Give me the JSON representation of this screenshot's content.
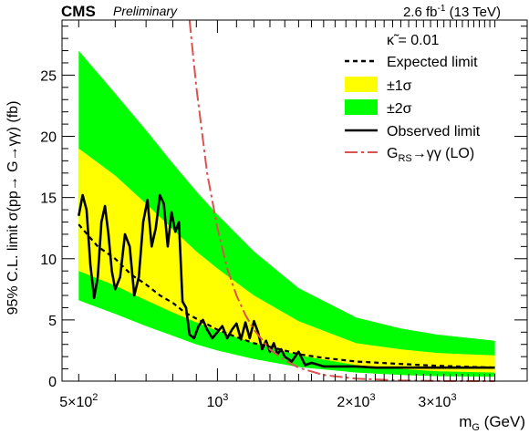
{
  "header": {
    "experiment": "CMS",
    "status": "Preliminary",
    "lumi": "2.6 fb",
    "lumi_exp": "-1",
    "energy": " (13 TeV)"
  },
  "axes": {
    "ylabel": "95% C.L. limit σ(pp→ G→γγ) (fb)",
    "xlabel_main": "m",
    "xlabel_sub": "G",
    "xlabel_unit": " (GeV)"
  },
  "legend": {
    "header_symbol": "κ̃",
    "header_value": " = 0.01",
    "expected": "Expected limit",
    "one_sigma": "±1σ",
    "two_sigma": "±2σ",
    "observed": "Observed limit",
    "theory_prefix": "G",
    "theory_sub": "RS",
    "theory_suffix": "→γγ (LO)"
  },
  "chart_data": {
    "type": "line",
    "title": "",
    "xlabel": "mG (GeV)",
    "ylabel": "95% C.L. limit σ(pp→ G→γγ) (fb)",
    "xscale": "log",
    "xlim": [
      460,
      4700
    ],
    "ylim": [
      0,
      29.5
    ],
    "x_tick_labels": [
      {
        "value": 500,
        "mantissa": "5×10",
        "exp": "2"
      },
      {
        "value": 1000,
        "mantissa": "10",
        "exp": "3"
      },
      {
        "value": 2000,
        "mantissa": "2×10",
        "exp": "3"
      },
      {
        "value": 3000,
        "mantissa": "3×10",
        "exp": "3"
      }
    ],
    "y_ticks": [
      0,
      5,
      10,
      15,
      20,
      25
    ],
    "legend_position": "top-right",
    "colors": {
      "two_sigma": "#00ff00",
      "one_sigma": "#ffff00",
      "expected": "#000000",
      "observed": "#000000",
      "theory": "#d9534f"
    },
    "series": [
      {
        "name": "±2σ",
        "x": [
          500,
          600,
          700,
          800,
          900,
          1000,
          1200,
          1500,
          2000,
          2500,
          3000,
          4000
        ],
        "upper": [
          27.0,
          23.5,
          20.5,
          17.8,
          15.5,
          13.6,
          10.6,
          7.6,
          5.2,
          4.3,
          3.8,
          3.3
        ],
        "lower": [
          6.6,
          5.5,
          4.5,
          3.7,
          3.0,
          2.5,
          1.8,
          1.15,
          0.7,
          0.5,
          0.4,
          0.35
        ]
      },
      {
        "name": "±1σ",
        "x": [
          500,
          600,
          700,
          800,
          900,
          1000,
          1200,
          1500,
          2000,
          2500,
          3000,
          4000
        ],
        "upper": [
          19.0,
          16.8,
          14.5,
          12.4,
          10.6,
          9.2,
          7.0,
          4.9,
          3.1,
          2.6,
          2.3,
          2.1
        ],
        "lower": [
          9.0,
          7.8,
          6.6,
          5.6,
          4.8,
          4.1,
          3.1,
          2.1,
          1.3,
          1.0,
          0.8,
          0.7
        ]
      },
      {
        "name": "Expected limit",
        "x": [
          500,
          550,
          600,
          650,
          700,
          750,
          800,
          850,
          900,
          1000,
          1100,
          1200,
          1300,
          1400,
          1500,
          1700,
          2000,
          2500,
          3000,
          4000
        ],
        "y": [
          12.8,
          11.0,
          10.0,
          8.7,
          7.9,
          7.0,
          6.4,
          5.6,
          5.1,
          4.2,
          3.6,
          3.1,
          2.8,
          2.5,
          2.2,
          1.9,
          1.6,
          1.4,
          1.25,
          1.1
        ]
      },
      {
        "name": "Observed limit",
        "x": [
          500,
          510,
          520,
          530,
          540,
          550,
          560,
          570,
          580,
          590,
          600,
          615,
          630,
          645,
          660,
          675,
          690,
          705,
          720,
          735,
          750,
          765,
          780,
          795,
          810,
          825,
          840,
          855,
          870,
          890,
          910,
          930,
          950,
          975,
          1000,
          1025,
          1050,
          1075,
          1100,
          1125,
          1150,
          1175,
          1200,
          1225,
          1250,
          1275,
          1300,
          1325,
          1350,
          1375,
          1400,
          1450,
          1500,
          1550,
          1600,
          1700,
          1800,
          2000,
          2200,
          2500,
          3000,
          3500,
          4000
        ],
        "y": [
          13.5,
          15.2,
          14.0,
          9.5,
          6.8,
          8.5,
          13.0,
          14.3,
          12.0,
          9.0,
          7.5,
          8.5,
          12.0,
          11.0,
          7.0,
          8.5,
          13.0,
          14.8,
          11.0,
          12.5,
          15.2,
          14.5,
          11.0,
          13.8,
          12.2,
          13.0,
          6.5,
          6.0,
          3.8,
          3.5,
          4.5,
          5.0,
          4.2,
          3.5,
          4.0,
          4.5,
          3.5,
          4.2,
          4.7,
          3.4,
          4.8,
          3.5,
          4.9,
          4.0,
          2.6,
          3.3,
          2.4,
          3.1,
          2.2,
          2.6,
          2.0,
          1.6,
          2.4,
          1.3,
          1.5,
          1.2,
          1.2,
          1.2,
          1.1,
          1.1,
          1.1,
          1.1,
          1.1
        ]
      },
      {
        "name": "GRS→γγ (LO)",
        "x": [
          870,
          900,
          950,
          1000,
          1050,
          1100,
          1150,
          1200,
          1300,
          1400,
          1500,
          1700,
          2000,
          2500,
          3000,
          4000
        ],
        "y": [
          29.5,
          24.0,
          17.0,
          12.5,
          9.2,
          7.0,
          5.4,
          4.2,
          2.6,
          1.7,
          1.1,
          0.5,
          0.2,
          0.05,
          0.015,
          0.002
        ]
      }
    ]
  }
}
